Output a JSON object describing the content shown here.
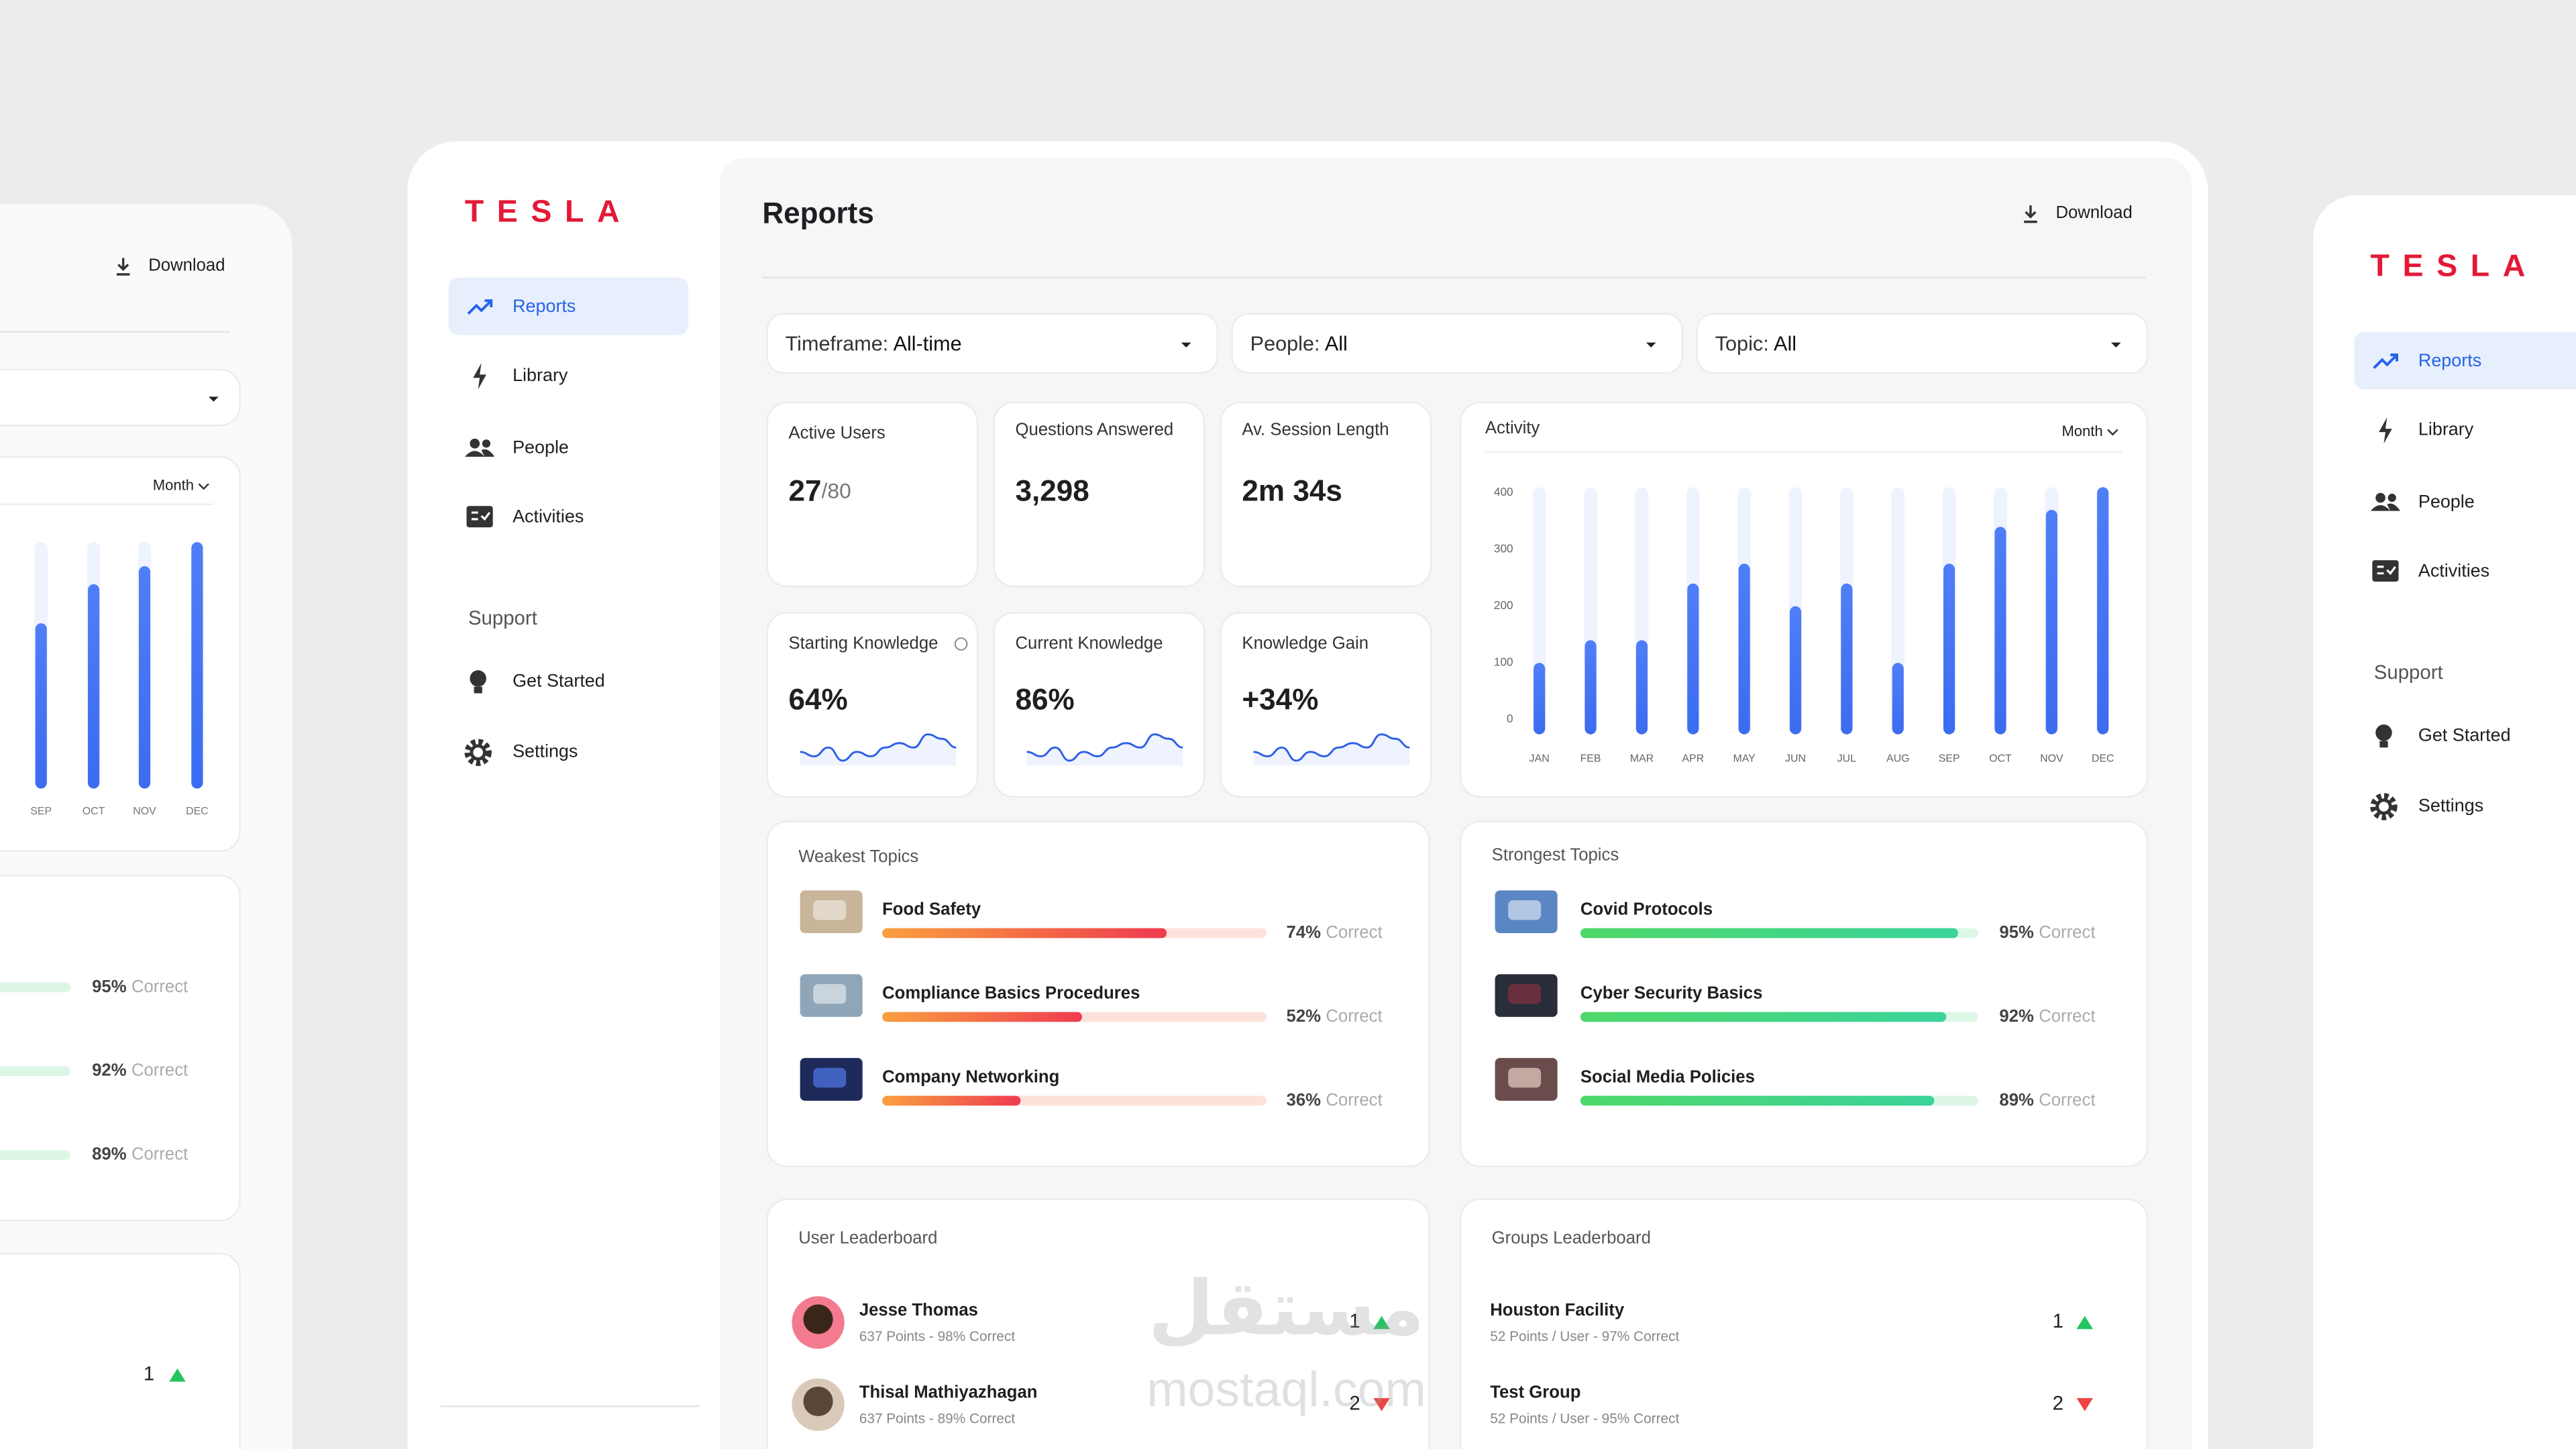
{
  "brand": "TESLA",
  "nav": [
    {
      "label": "Reports"
    },
    {
      "label": "Library"
    },
    {
      "label": "People"
    },
    {
      "label": "Activities"
    }
  ],
  "support": {
    "title": "Support",
    "items": [
      "Get Started",
      "Settings"
    ]
  },
  "header": {
    "title": "Reports",
    "download": "Download"
  },
  "filters": [
    {
      "label": "Timeframe:",
      "value": "All-time"
    },
    {
      "label": "People:",
      "value": "All"
    },
    {
      "label": "Topic:",
      "value": "All"
    }
  ],
  "kpis": [
    {
      "label": "Active Users",
      "value": "27",
      "suffix": "/80"
    },
    {
      "label": "Questions Answered",
      "value": "3,298"
    },
    {
      "label": "Av. Session Length",
      "value": "2m 34s"
    }
  ],
  "knowledge": [
    {
      "label": "Starting Knowledge",
      "value": "64%",
      "trend": [
        4,
        3,
        5,
        2,
        4,
        3,
        5,
        6,
        5,
        8,
        7,
        5
      ]
    },
    {
      "label": "Current Knowledge",
      "value": "86%",
      "trend": [
        4,
        3,
        5,
        2,
        4,
        3,
        5,
        6,
        5,
        8,
        7,
        5
      ]
    },
    {
      "label": "Knowledge Gain",
      "value": "+34%",
      "trend": [
        4,
        3,
        5,
        2,
        4,
        3,
        5,
        6,
        5,
        8,
        7,
        5
      ]
    }
  ],
  "chart_data": {
    "type": "bar",
    "title": "Activity",
    "period": "Month",
    "categories": [
      "JAN",
      "FEB",
      "MAR",
      "APR",
      "MAY",
      "JUN",
      "JUL",
      "AUG",
      "SEP",
      "OCT",
      "NOV",
      "DEC"
    ],
    "values": [
      100,
      140,
      140,
      240,
      275,
      200,
      240,
      100,
      275,
      340,
      370,
      410
    ],
    "color": "#4f7ef7",
    "ylim": [
      0,
      410
    ],
    "yticks": [
      0,
      100,
      200,
      300,
      400
    ]
  },
  "weakest_topics": {
    "title": "Weakest Topics",
    "correct_label": "Correct",
    "items": [
      {
        "name": "Food Safety",
        "percent": 74,
        "percent_label": "74%"
      },
      {
        "name": "Compliance Basics Procedures",
        "percent": 52,
        "percent_label": "52%"
      },
      {
        "name": "Company Networking",
        "percent": 36,
        "percent_label": "36%"
      }
    ]
  },
  "strongest_topics": {
    "title": "Strongest Topics",
    "correct_label": "Correct",
    "items": [
      {
        "name": "Covid Protocols",
        "percent": 95,
        "percent_label": "95%"
      },
      {
        "name": "Cyber Security Basics",
        "percent": 92,
        "percent_label": "92%"
      },
      {
        "name": "Social Media Policies",
        "percent": 89,
        "percent_label": "89%"
      }
    ]
  },
  "user_leaderboard": {
    "title": "User Leaderboard",
    "rows": [
      {
        "name": "Jesse Thomas",
        "detail": "637 Points - 98% Correct",
        "rank": 1,
        "trend": "up"
      },
      {
        "name": "Thisal Mathiyazhagan",
        "detail": "637 Points - 89% Correct",
        "rank": 2,
        "trend": "down"
      }
    ]
  },
  "groups_leaderboard": {
    "title": "Groups Leaderboard",
    "rows": [
      {
        "name": "Houston Facility",
        "detail": "52 Points / User - 97% Correct",
        "rank": 1,
        "trend": "up"
      },
      {
        "name": "Test Group",
        "detail": "52 Points / User - 95% Correct",
        "rank": 2,
        "trend": "down"
      }
    ]
  },
  "watermark": {
    "arabic": "مستقل",
    "latin": "mostaql.com"
  }
}
